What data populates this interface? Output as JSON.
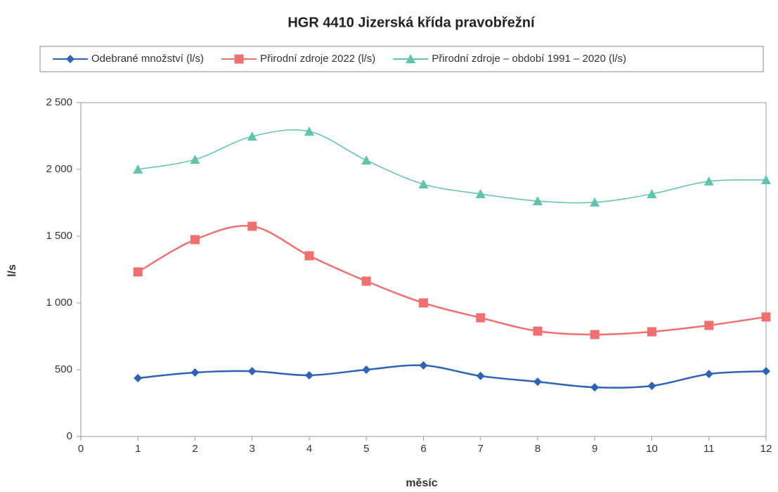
{
  "chart_data": {
    "type": "line",
    "title": "HGR 4410 Jizerská křída pravobřežní",
    "xlabel": "měsíc",
    "ylabel": "l/s",
    "x": [
      1,
      2,
      3,
      4,
      5,
      6,
      7,
      8,
      9,
      10,
      11,
      12
    ],
    "series": [
      {
        "name": "Odebrané množství (l/s)",
        "color": "#2e64b8",
        "marker": "diamond",
        "values": [
          437,
          479,
          489,
          458,
          500,
          532,
          453,
          410,
          368,
          379,
          468,
          489
        ]
      },
      {
        "name": "Přirodní zdroje 2022 (l/s)",
        "color": "#f07070",
        "marker": "square",
        "values": [
          1232,
          1474,
          1574,
          1353,
          1163,
          1000,
          889,
          789,
          763,
          784,
          832,
          895
        ]
      },
      {
        "name": "Přirodní zdroje – období 1991 – 2020 (l/s)",
        "color": "#5ec4ad",
        "marker": "triangle",
        "values": [
          2000,
          2074,
          2247,
          2284,
          2068,
          1889,
          1816,
          1763,
          1753,
          1816,
          1911,
          1921
        ]
      }
    ],
    "xlim": [
      0,
      12
    ],
    "xticks": [
      0,
      1,
      2,
      3,
      4,
      5,
      6,
      7,
      8,
      9,
      10,
      11,
      12
    ],
    "ylim": [
      0,
      2500
    ],
    "yticks": [
      0,
      500,
      {
        "value": 1000,
        "label": "1 000"
      },
      {
        "value": 1500,
        "label": "1 500"
      },
      {
        "value": 2000,
        "label": "2 000"
      },
      {
        "value": 2500,
        "label": "2 500"
      }
    ],
    "grid": false,
    "smooth": true,
    "legend": "top"
  }
}
